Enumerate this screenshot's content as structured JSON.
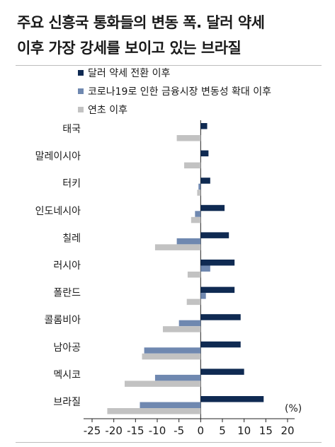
{
  "title_line1": "주요 신흥국 통화들의 변동 폭. 달러 약세",
  "title_line2": "이후 가장 강세를 보이고 있는 브라질",
  "chart_data": {
    "type": "bar",
    "orientation": "horizontal",
    "unit": "(%)",
    "xlim": [
      -25,
      20
    ],
    "xticks": [
      "-25",
      "-20",
      "-15",
      "-10",
      "-5",
      "0",
      "5",
      "10",
      "15",
      "20"
    ],
    "categories": [
      "태국",
      "말레이시아",
      "터키",
      "인도네시아",
      "칠레",
      "러시아",
      "폴란드",
      "콜롬비아",
      "남아공",
      "멕시코",
      "브라질"
    ],
    "series": [
      {
        "name": "달러 약세 전환 이후",
        "color": "#0f2a52",
        "values": [
          1.5,
          1.8,
          2.2,
          5.5,
          6.5,
          7.8,
          7.8,
          9.2,
          9.2,
          10.0,
          14.5
        ]
      },
      {
        "name": "코로나19로 인한 금융시장 변동성 확대 이후",
        "color": "#6f88b0",
        "values": [
          0,
          0,
          -0.5,
          -1.3,
          -5.5,
          2.2,
          1.2,
          -5.0,
          -13.0,
          -10.5,
          -14.0
        ]
      },
      {
        "name": "연초 이후",
        "color": "#c2c2c2",
        "values": [
          -5.5,
          -3.8,
          -0.8,
          -2.2,
          -10.5,
          -3.0,
          -3.2,
          -8.7,
          -13.5,
          -17.5,
          -21.5
        ]
      }
    ],
    "legend_position": "top-left"
  }
}
